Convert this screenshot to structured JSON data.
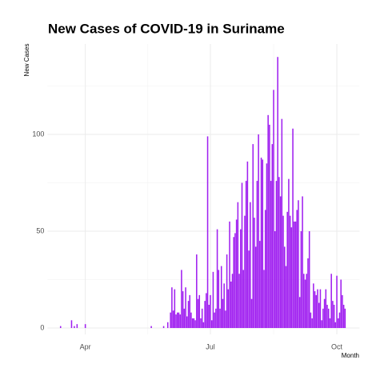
{
  "chart_data": {
    "type": "bar",
    "title": "New Cases of COVID-19 in Suriname",
    "y_label": "New Cases",
    "x_label": "Month",
    "color": "#a020f0",
    "grid": true,
    "ylim": [
      -3.3,
      146.7
    ],
    "yticks": [
      0,
      50,
      100
    ],
    "yminor": [
      25,
      75,
      125
    ],
    "categories": [
      null,
      null,
      null,
      null,
      null,
      null,
      null,
      null,
      null,
      null,
      null,
      null,
      null,
      null,
      null,
      null,
      null,
      null,
      null,
      null,
      null,
      null,
      null,
      null,
      null,
      null,
      null,
      "Apr",
      null,
      null,
      null,
      null,
      null,
      null,
      null,
      null,
      null,
      null,
      null,
      null,
      null,
      null,
      null,
      null,
      null,
      null,
      null,
      null,
      null,
      null,
      null,
      null,
      null,
      null,
      null,
      null,
      null,
      null,
      null,
      null,
      null,
      null,
      null,
      null,
      null,
      null,
      null,
      null,
      null,
      null,
      null,
      null,
      null,
      null,
      null,
      null,
      null,
      null,
      null,
      null,
      null,
      null,
      null,
      null,
      null,
      null,
      null,
      null,
      null,
      null,
      null,
      null,
      null,
      null,
      null,
      null,
      null,
      null,
      null,
      null,
      null,
      null,
      null,
      null,
      null,
      null,
      null,
      null,
      null,
      null,
      null,
      null,
      null,
      null,
      null,
      null,
      null,
      null,
      "Jul",
      null,
      null,
      null,
      null,
      null,
      null,
      null,
      null,
      null,
      null,
      null,
      null,
      null,
      null,
      null,
      null,
      null,
      null,
      null,
      null,
      null,
      null,
      null,
      null,
      null,
      null,
      null,
      null,
      null,
      null,
      null,
      null,
      null,
      null,
      null,
      null,
      null,
      null,
      null,
      null,
      null,
      null,
      null,
      null,
      null,
      null,
      null,
      null,
      null,
      null,
      null,
      null,
      null,
      null,
      null,
      null,
      null,
      null,
      null,
      null,
      null,
      null,
      null,
      null,
      null,
      null,
      null,
      null,
      null,
      null,
      null,
      null,
      null,
      null,
      null,
      null,
      null,
      null,
      null,
      null,
      null,
      null,
      null,
      null,
      null,
      null,
      null,
      null,
      null,
      null,
      null,
      "Oct",
      null,
      null,
      null,
      null,
      null,
      null,
      null,
      null,
      null,
      null,
      null,
      null,
      null,
      null,
      null,
      null
    ],
    "values": [
      0,
      0,
      0,
      0,
      0,
      0,
      0,
      0,
      0,
      1,
      0,
      0,
      0,
      0,
      0,
      0,
      0,
      4,
      0,
      1,
      0,
      2,
      0,
      0,
      0,
      0,
      0,
      2,
      0,
      0,
      0,
      0,
      0,
      0,
      0,
      0,
      0,
      0,
      0,
      0,
      0,
      0,
      0,
      0,
      0,
      0,
      0,
      0,
      0,
      0,
      0,
      0,
      0,
      0,
      0,
      0,
      0,
      0,
      0,
      0,
      0,
      0,
      0,
      0,
      0,
      0,
      0,
      0,
      0,
      0,
      0,
      0,
      0,
      0,
      0,
      1,
      0,
      0,
      0,
      0,
      0,
      0,
      0,
      0,
      1,
      0,
      0,
      3,
      0,
      8,
      21,
      9,
      20,
      7,
      8,
      8,
      7,
      30,
      19,
      10,
      21,
      6,
      14,
      17,
      8,
      5,
      5,
      4,
      38,
      15,
      17,
      5,
      10,
      3,
      14,
      18,
      99,
      12,
      17,
      4,
      29,
      8,
      10,
      51,
      30,
      10,
      32,
      15,
      23,
      9,
      38,
      20,
      55,
      24,
      28,
      47,
      49,
      56,
      65,
      28,
      51,
      75,
      30,
      58,
      76,
      86,
      40,
      65,
      15,
      95,
      57,
      42,
      76,
      100,
      45,
      88,
      87,
      30,
      61,
      85,
      110,
      105,
      76,
      95,
      123,
      50,
      76,
      140,
      78,
      68,
      108,
      58,
      42,
      32,
      60,
      77,
      58,
      52,
      103,
      55,
      55,
      61,
      66,
      16,
      50,
      68,
      28,
      25,
      28,
      36,
      50,
      8,
      5,
      23,
      19,
      17,
      20,
      13,
      20,
      4,
      10,
      15,
      20,
      12,
      10,
      5,
      28,
      14,
      12,
      3,
      27,
      5,
      8,
      25,
      17,
      12,
      10,
      0,
      0,
      0,
      0,
      0,
      0,
      0,
      0,
      0,
      0
    ]
  }
}
